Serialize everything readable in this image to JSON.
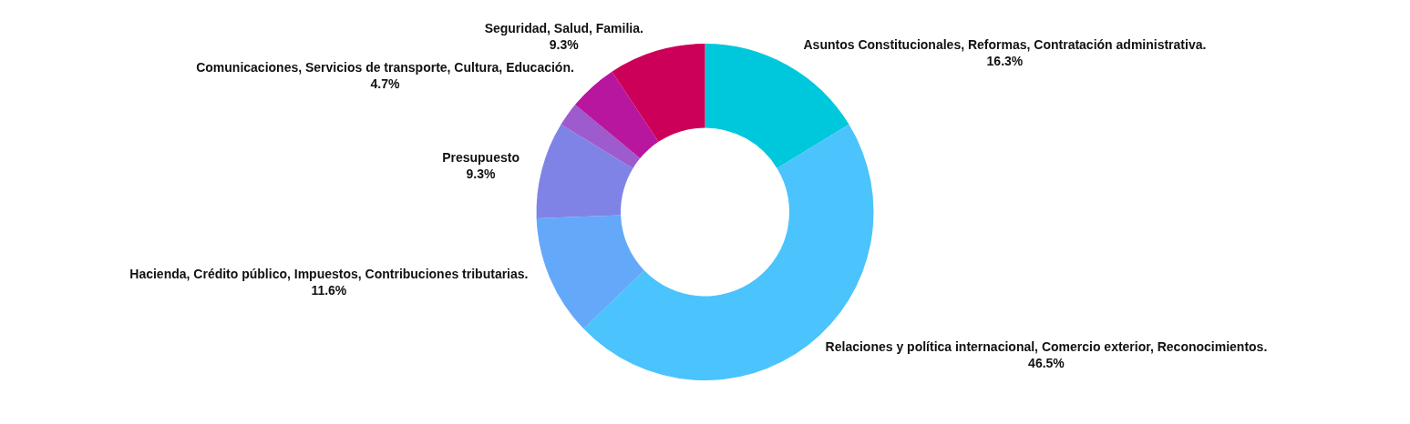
{
  "chart_data": {
    "type": "donut",
    "categories": [
      "Asuntos Constitucionales, Reformas, Contratación administrativa.",
      "Relaciones y política internacional, Comercio exterior, Reconocimientos.",
      "Hacienda, Crédito público, Impuestos, Contribuciones tributarias.",
      "Presupuesto",
      null,
      "Comunicaciones, Servicios de transporte, Cultura, Educación.",
      "Seguridad, Salud, Familia."
    ],
    "values": [
      16.3,
      46.5,
      11.6,
      9.3,
      2.3,
      4.7,
      9.3
    ],
    "value_labels": [
      "16.3%",
      "46.5%",
      "11.6%",
      "9.3%",
      null,
      "4.7%",
      "9.3%"
    ],
    "colors": [
      "#00c8dc",
      "#4bc3fc",
      "#64a8fa",
      "#8083e6",
      "#9d5bcd",
      "#b8169e",
      "#cc0058"
    ],
    "legend": false
  }
}
